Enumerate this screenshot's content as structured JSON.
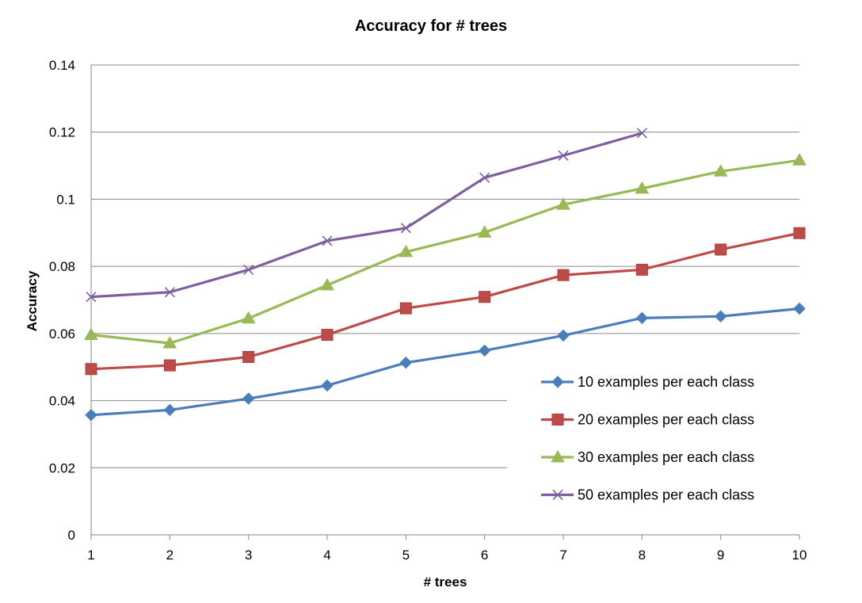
{
  "chart_data": {
    "type": "line",
    "title": "Accuracy for # trees",
    "xlabel": "# trees",
    "ylabel": "Accuracy",
    "x": [
      1,
      2,
      3,
      4,
      5,
      6,
      7,
      8,
      9,
      10
    ],
    "xlim": [
      1,
      10
    ],
    "ylim": [
      0,
      0.14
    ],
    "yticks": [
      "0",
      "0.02",
      "0.04",
      "0.06",
      "0.08",
      "0.1",
      "0.12",
      "0.14"
    ],
    "xticks": [
      "1",
      "2",
      "3",
      "4",
      "5",
      "6",
      "7",
      "8",
      "9",
      "10"
    ],
    "grid": true,
    "legend_position": "right",
    "series": [
      {
        "name": "10 examples per each class",
        "color": "#4a7ebb",
        "marker": "diamond",
        "values": [
          0.0357,
          0.0372,
          0.0406,
          0.0445,
          0.0513,
          0.0549,
          0.0594,
          0.0646,
          0.0651,
          0.0674
        ]
      },
      {
        "name": "20 examples per each class",
        "color": "#be4b48",
        "marker": "square",
        "values": [
          0.0494,
          0.0505,
          0.053,
          0.0596,
          0.0675,
          0.0709,
          0.0774,
          0.079,
          0.085,
          0.0899
        ]
      },
      {
        "name": "30 examples per each class",
        "color": "#98b954",
        "marker": "triangle",
        "values": [
          0.0596,
          0.0571,
          0.0645,
          0.0744,
          0.0843,
          0.0901,
          0.0984,
          0.1032,
          0.1083,
          0.1116
        ]
      },
      {
        "name": "50 examples per each class",
        "color": "#7d5fa0",
        "marker": "x",
        "values": [
          0.0709,
          0.0723,
          0.079,
          0.0876,
          0.0914,
          0.1064,
          0.113,
          0.1197,
          null,
          null
        ]
      }
    ]
  }
}
